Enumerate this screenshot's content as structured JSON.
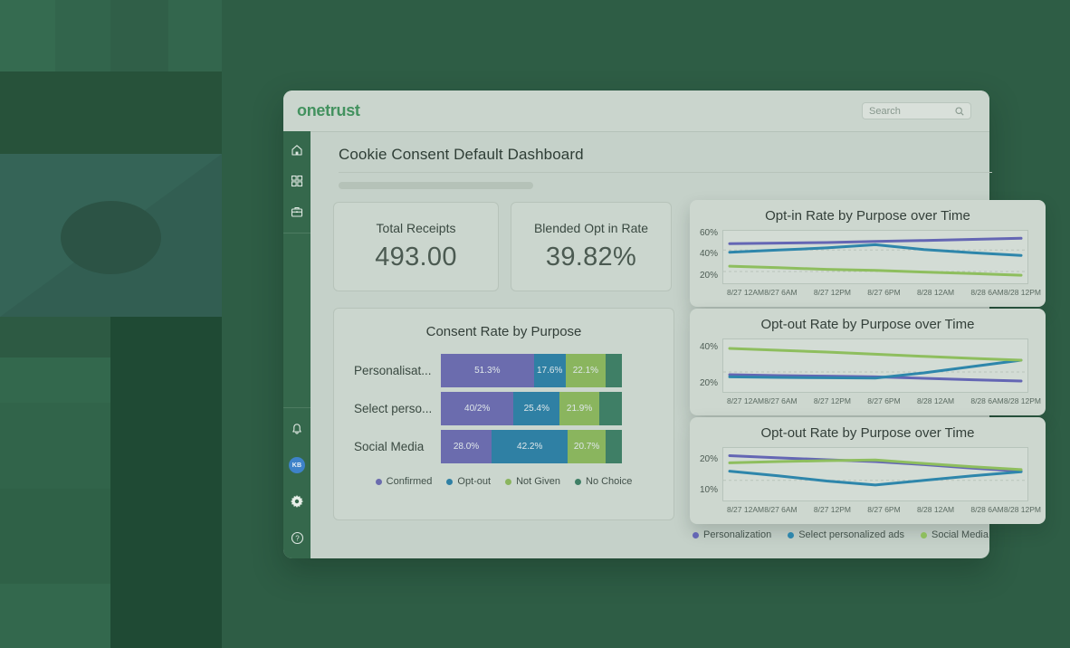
{
  "colors": {
    "brand_green": "#43925f",
    "purple": "#6466b4",
    "teal": "#2e86ab",
    "green": "#8ebe5e",
    "dark_green": "#3f7f66",
    "avatar_blue": "#3e82c9"
  },
  "header": {
    "logo": "onetrust",
    "search_placeholder": "Search"
  },
  "sidebar": {
    "avatar_initials": "KB"
  },
  "page": {
    "title": "Cookie Consent Default Dashboard"
  },
  "kpis": [
    {
      "label": "Total Receipts",
      "value": "493.00"
    },
    {
      "label": "Blended Opt in Rate",
      "value": "39.82%"
    }
  ],
  "chart_data": [
    {
      "type": "bar",
      "stacked": true,
      "orientation": "horizontal",
      "title": "Consent Rate by Purpose",
      "categories": [
        "Personalisat...",
        "Select perso...",
        "Social Media"
      ],
      "series": [
        {
          "name": "Confirmed",
          "color": "#6b6cae",
          "values": [
            51.3,
            40.2,
            28.0
          ],
          "labels": [
            "51.3%",
            "40/2%",
            "28.0%"
          ]
        },
        {
          "name": "Opt-out",
          "color": "#2f80a4",
          "values": [
            17.6,
            25.4,
            42.2
          ],
          "labels": [
            "17.6%",
            "25.4%",
            "42.2%"
          ]
        },
        {
          "name": "Not Given",
          "color": "#8ab55e",
          "values": [
            22.1,
            21.9,
            20.7
          ],
          "labels": [
            "22.1%",
            "21.9%",
            "20.7%"
          ]
        },
        {
          "name": "No Choice",
          "color": "#3f7f66",
          "values": [
            9.0,
            12.5,
            9.1
          ],
          "labels": [
            "",
            "",
            ""
          ]
        }
      ],
      "xlim": [
        0,
        100
      ],
      "legend_position": "bottom"
    },
    {
      "type": "line",
      "title": "Opt-in Rate by Purpose over Time",
      "x": [
        "8/27 12AM",
        "8/27 6AM",
        "8/27 12PM",
        "8/27 6PM",
        "8/28 12AM",
        "8/28 6AM",
        "8/28 12PM"
      ],
      "series": [
        {
          "name": "Personalization",
          "color": "#6466b4",
          "values": [
            51,
            51.5,
            52,
            53,
            54,
            55,
            56
          ]
        },
        {
          "name": "Select personalized ads",
          "color": "#2e86ab",
          "values": [
            43,
            45,
            47,
            50,
            45.5,
            42.5,
            40
          ]
        },
        {
          "name": "Social Media",
          "color": "#8ebe5e",
          "values": [
            30,
            28.5,
            27,
            26,
            24.5,
            23,
            21.5
          ]
        }
      ],
      "yticks": [
        20,
        40,
        60
      ],
      "ylim": [
        14,
        63
      ],
      "dashed_gridlines": [
        25,
        45
      ],
      "legend_position": "shared-bottom"
    },
    {
      "type": "line",
      "title": "Opt-out Rate by Purpose over Time",
      "x": [
        "8/27 12AM",
        "8/27 6AM",
        "8/27 12PM",
        "8/27 6PM",
        "8/28 12AM",
        "8/28 6AM",
        "8/28 12PM"
      ],
      "series": [
        {
          "name": "Personalization",
          "color": "#6466b4",
          "values": [
            25.5,
            25,
            24.7,
            24.3,
            23.5,
            22.7,
            22
          ]
        },
        {
          "name": "Select personalized ads",
          "color": "#2e86ab",
          "values": [
            24.3,
            24,
            23.8,
            23.6,
            26.5,
            30,
            33.5
          ]
        },
        {
          "name": "Social Media",
          "color": "#8ebe5e",
          "values": [
            40,
            39,
            38,
            36.8,
            35.6,
            34.5,
            33.5
          ]
        }
      ],
      "yticks": [
        20,
        40
      ],
      "ylim": [
        16,
        45
      ],
      "dashed_gridlines": [
        27
      ],
      "legend_position": "shared-bottom"
    },
    {
      "type": "line",
      "title": "Opt-out Rate by Purpose over Time",
      "x": [
        "8/27 12AM",
        "8/27 6AM",
        "8/27 12PM",
        "8/27 6PM",
        "8/28 12AM",
        "8/28 6AM",
        "8/28 12PM"
      ],
      "series": [
        {
          "name": "Personalization",
          "color": "#6466b4",
          "values": [
            21.5,
            20.8,
            20.2,
            19.6,
            18.6,
            17.5,
            16.5
          ]
        },
        {
          "name": "Select personalized ads",
          "color": "#2e86ab",
          "values": [
            16.5,
            15,
            13.3,
            12,
            13.5,
            15,
            16.3
          ]
        },
        {
          "name": "Social Media",
          "color": "#8ebe5e",
          "values": [
            19.2,
            19.6,
            19.9,
            20.1,
            19,
            17.9,
            17
          ]
        }
      ],
      "yticks": [
        10,
        20
      ],
      "ylim": [
        7,
        24
      ],
      "dashed_gridlines": [
        13.5
      ],
      "legend_position": "shared-bottom"
    }
  ],
  "time_legend": [
    {
      "label": "Personalization",
      "color": "#6466b4"
    },
    {
      "label": "Select personalized ads",
      "color": "#2e86ab"
    },
    {
      "label": "Social Media",
      "color": "#8ebe5e"
    }
  ]
}
